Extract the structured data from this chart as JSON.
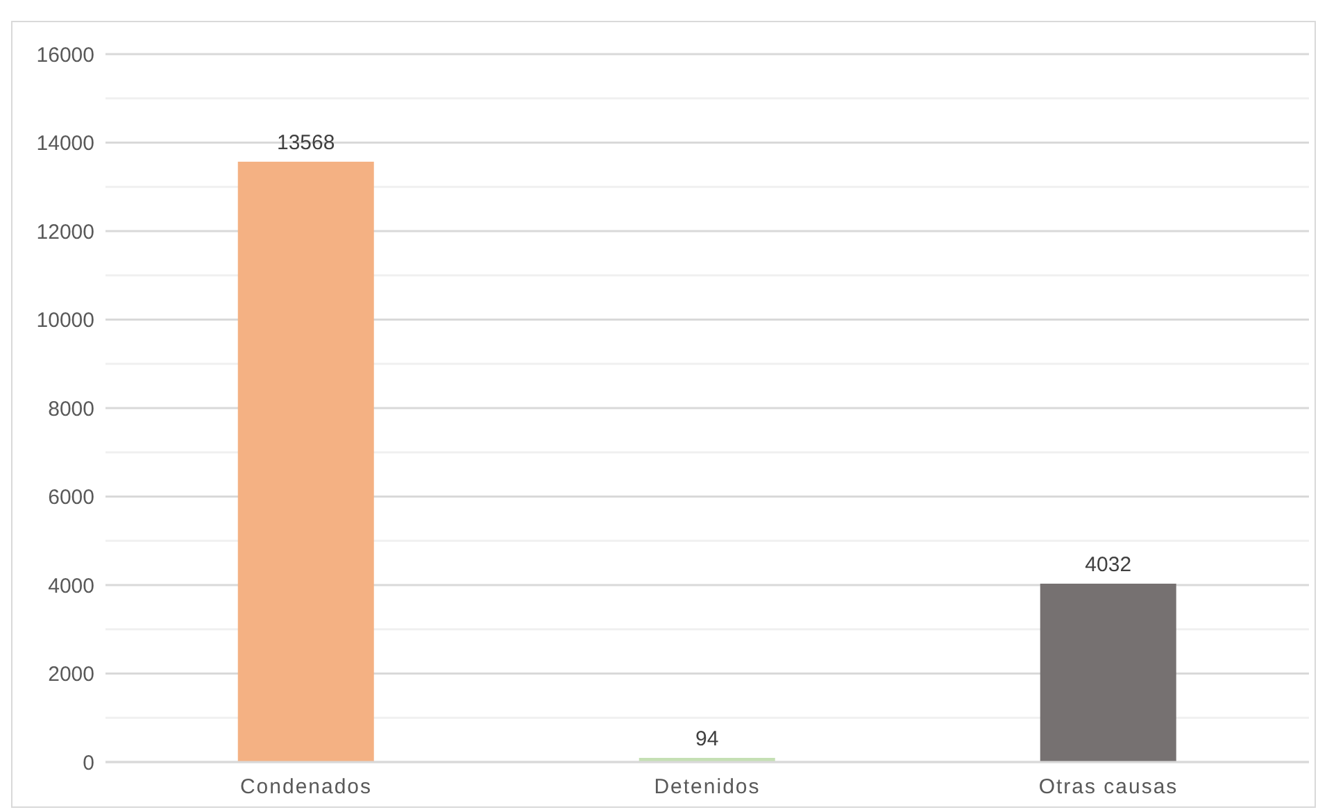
{
  "chart_data": {
    "type": "bar",
    "categories": [
      "Condenados",
      "Detenidos",
      "Otras causas"
    ],
    "values": [
      13568,
      94,
      4032
    ],
    "colors": [
      "#f4b183",
      "#c5e0b4",
      "#767171"
    ],
    "ylim": [
      0,
      16000
    ],
    "yticks": [
      0,
      {
        "value": 1000,
        "label": null
      },
      2000,
      {
        "value": 3000,
        "label": null
      },
      4000,
      {
        "value": 5000,
        "label": null
      },
      6000,
      {
        "value": 7000,
        "label": null
      },
      8000,
      {
        "value": 9000,
        "label": null
      },
      10000,
      {
        "value": 11000,
        "label": null
      },
      12000,
      {
        "value": 13000,
        "label": null
      },
      14000,
      {
        "value": 15000,
        "label": null
      },
      16000
    ],
    "grid": "y",
    "data_labels": true
  }
}
